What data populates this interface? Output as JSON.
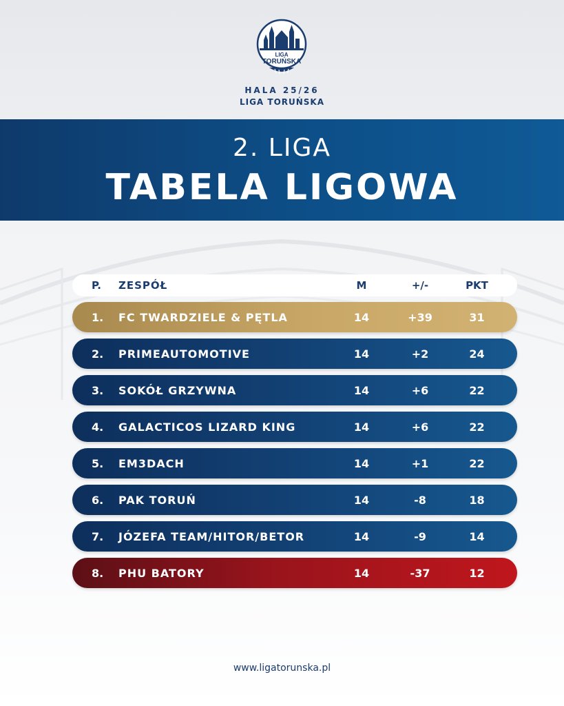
{
  "logo": {
    "line1": "LIGA",
    "line2": "TORUŃSKA"
  },
  "header": {
    "season": "HALA 25/26",
    "league_name": "LIGA TORUŃSKA"
  },
  "banner": {
    "subtitle": "2. LIGA",
    "title": "TABELA LIGOWA"
  },
  "table": {
    "columns": {
      "pos": "P.",
      "team": "ZESPÓŁ",
      "m": "M",
      "diff": "+/-",
      "pkt": "PKT"
    },
    "rows": [
      {
        "pos": "1.",
        "team": "FC TWARDZIELE & PĘTLA",
        "m": "14",
        "diff": "+39",
        "pkt": "31",
        "style": "gold"
      },
      {
        "pos": "2.",
        "team": "PRIMEAUTOMOTIVE",
        "m": "14",
        "diff": "+2",
        "pkt": "24",
        "style": "blue"
      },
      {
        "pos": "3.",
        "team": "SOKÓŁ GRZYWNA",
        "m": "14",
        "diff": "+6",
        "pkt": "22",
        "style": "blue"
      },
      {
        "pos": "4.",
        "team": "GALACTICOS LIZARD KING",
        "m": "14",
        "diff": "+6",
        "pkt": "22",
        "style": "blue"
      },
      {
        "pos": "5.",
        "team": "EM3DACH",
        "m": "14",
        "diff": "+1",
        "pkt": "22",
        "style": "blue"
      },
      {
        "pos": "6.",
        "team": "PAK TORUŃ",
        "m": "14",
        "diff": "-8",
        "pkt": "18",
        "style": "blue"
      },
      {
        "pos": "7.",
        "team": "JÓZEFA TEAM/HITOR/BETOR",
        "m": "14",
        "diff": "-9",
        "pkt": "14",
        "style": "blue"
      },
      {
        "pos": "8.",
        "team": "PHU BATORY",
        "m": "14",
        "diff": "-37",
        "pkt": "12",
        "style": "red"
      }
    ]
  },
  "footer": {
    "url": "www.ligatorunska.pl"
  },
  "colors": {
    "navy": "#1b3c6e",
    "banner_blue": "#0d4f88",
    "gold": "#c9a867",
    "red": "#b3161d"
  }
}
